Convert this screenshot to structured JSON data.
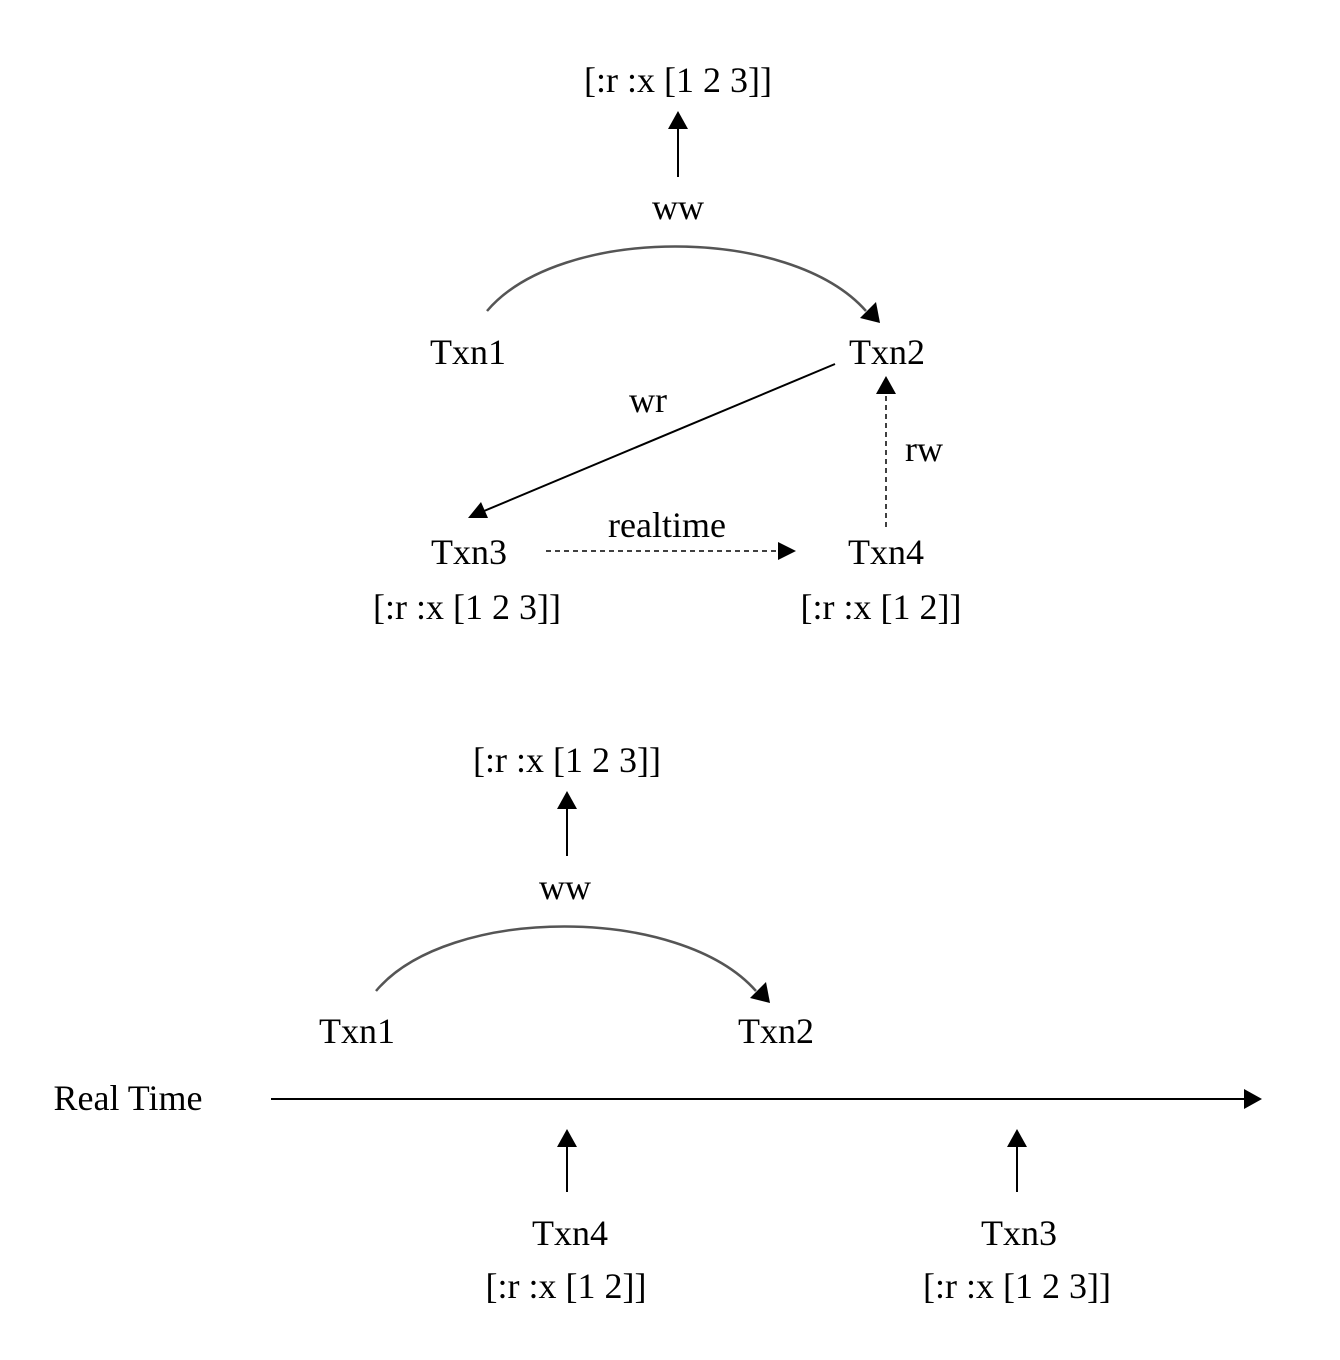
{
  "colors": {
    "ink": "#000000",
    "curve": "#555555"
  },
  "top_graph": {
    "result_read": "[:r :x [1 2 3]]",
    "edge_ww": "ww",
    "edge_wr": "wr",
    "edge_rw": "rw",
    "edge_realtime": "realtime",
    "txn1": "Txn1",
    "txn2": "Txn2",
    "txn3": "Txn3",
    "txn3_op": "[:r :x [1 2 3]]",
    "txn4": "Txn4",
    "txn4_op": "[:r :x [1 2]]"
  },
  "bottom_timeline": {
    "result_read": "[:r :x [1 2 3]]",
    "edge_ww": "ww",
    "txn1": "Txn1",
    "txn2": "Txn2",
    "axis_label": "Real Time",
    "txn4": "Txn4",
    "txn4_op": "[:r :x [1 2]]",
    "txn3": "Txn3",
    "txn3_op": "[:r :x [1 2 3]]"
  }
}
